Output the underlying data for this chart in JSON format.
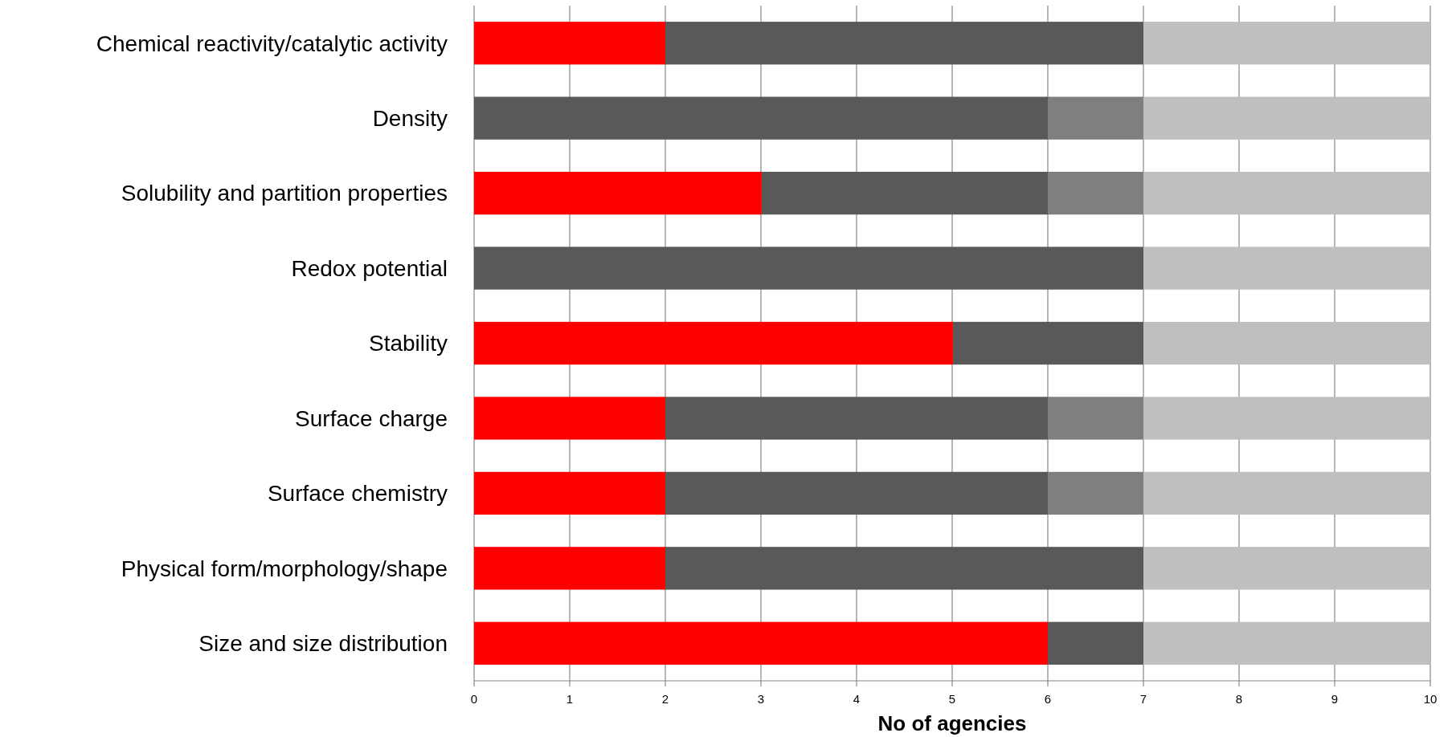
{
  "chart_data": {
    "type": "bar",
    "orientation": "horizontal",
    "stacked": true,
    "categories": [
      "Chemical reactivity/catalytic activity",
      "Density",
      "Solubility and partition properties",
      "Redox potential",
      "Stability",
      "Surface charge",
      "Surface chemistry",
      "Physical form/morphology/shape",
      "Size and size distribution"
    ],
    "series": [
      {
        "color": "#ff0000",
        "values": [
          2,
          0,
          3,
          0,
          5,
          2,
          2,
          2,
          6
        ]
      },
      {
        "color": "#595959",
        "values": [
          5,
          6,
          3,
          7,
          2,
          4,
          4,
          5,
          1
        ]
      },
      {
        "color": "#7f7f7f",
        "values": [
          0,
          1,
          1,
          0,
          0,
          1,
          1,
          0,
          0
        ]
      },
      {
        "color": "#bfbfbf",
        "values": [
          3,
          3,
          3,
          3,
          3,
          3,
          3,
          3,
          3
        ]
      }
    ],
    "xlabel": "No of agencies",
    "xlim": [
      0,
      10
    ],
    "xticks": [
      0,
      1,
      2,
      3,
      4,
      5,
      6,
      7,
      8,
      9,
      10
    ],
    "grid": "x"
  }
}
